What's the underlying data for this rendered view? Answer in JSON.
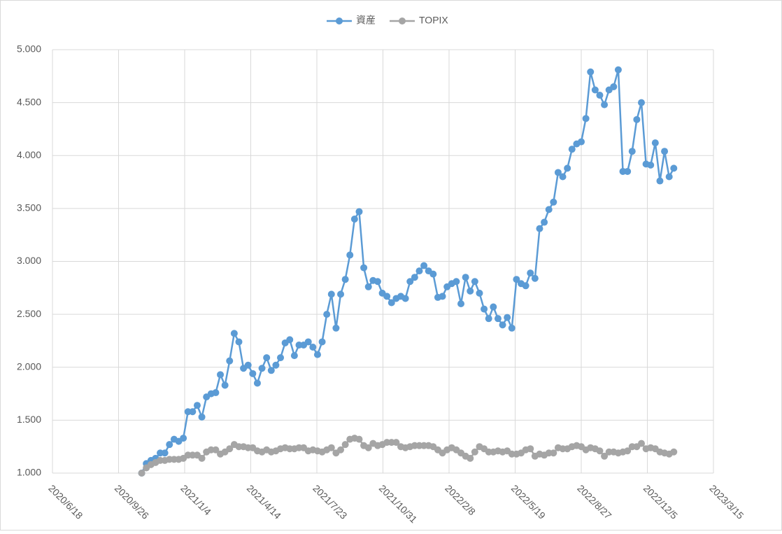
{
  "chart_data": {
    "type": "line",
    "x": [
      "2020/10/31",
      "2020/11/7",
      "2020/11/14",
      "2020/11/21",
      "2020/11/28",
      "2020/12/5",
      "2020/12/12",
      "2020/12/19",
      "2020/12/26",
      "2021/1/2",
      "2021/1/9",
      "2021/1/16",
      "2021/1/23",
      "2021/1/30",
      "2021/2/6",
      "2021/2/13",
      "2021/2/20",
      "2021/2/27",
      "2021/3/6",
      "2021/3/13",
      "2021/3/20",
      "2021/3/27",
      "2021/4/3",
      "2021/4/10",
      "2021/4/17",
      "2021/4/24",
      "2021/5/1",
      "2021/5/8",
      "2021/5/15",
      "2021/5/22",
      "2021/5/29",
      "2021/6/5",
      "2021/6/12",
      "2021/6/19",
      "2021/6/26",
      "2021/7/3",
      "2021/7/10",
      "2021/7/17",
      "2021/7/24",
      "2021/7/31",
      "2021/8/7",
      "2021/8/14",
      "2021/8/21",
      "2021/8/28",
      "2021/9/4",
      "2021/9/11",
      "2021/9/18",
      "2021/9/25",
      "2021/10/2",
      "2021/10/9",
      "2021/10/16",
      "2021/10/23",
      "2021/10/30",
      "2021/11/6",
      "2021/11/13",
      "2021/11/20",
      "2021/11/27",
      "2021/12/4",
      "2021/12/11",
      "2021/12/18",
      "2021/12/25",
      "2022/1/1",
      "2022/1/8",
      "2022/1/15",
      "2022/1/22",
      "2022/1/29",
      "2022/2/5",
      "2022/2/12",
      "2022/2/19",
      "2022/2/26",
      "2022/3/5",
      "2022/3/12",
      "2022/3/19",
      "2022/3/26",
      "2022/4/2",
      "2022/4/9",
      "2022/4/16",
      "2022/4/23",
      "2022/4/30",
      "2022/5/7",
      "2022/5/14",
      "2022/5/21",
      "2022/5/28",
      "2022/6/4",
      "2022/6/11",
      "2022/6/18",
      "2022/6/25",
      "2022/7/2",
      "2022/7/9",
      "2022/7/16",
      "2022/7/23",
      "2022/7/30",
      "2022/8/6",
      "2022/8/13",
      "2022/8/20",
      "2022/8/27",
      "2022/9/3",
      "2022/9/10",
      "2022/9/17",
      "2022/9/24",
      "2022/10/1",
      "2022/10/8",
      "2022/10/15",
      "2022/10/22",
      "2022/10/29",
      "2022/11/5",
      "2022/11/12",
      "2022/11/19",
      "2022/11/26",
      "2022/12/3",
      "2022/12/10",
      "2022/12/17",
      "2022/12/24",
      "2022/12/31",
      "2023/1/7",
      "2023/1/14"
    ],
    "series": [
      {
        "name": "資産",
        "color": "#5b9bd5",
        "values": [
          1.0,
          1.09,
          1.12,
          1.14,
          1.19,
          1.19,
          1.27,
          1.32,
          1.3,
          1.33,
          1.58,
          1.58,
          1.64,
          1.53,
          1.72,
          1.75,
          1.76,
          1.93,
          1.83,
          2.06,
          2.32,
          2.24,
          1.99,
          2.02,
          1.94,
          1.85,
          1.99,
          2.09,
          1.97,
          2.02,
          2.09,
          2.23,
          2.26,
          2.11,
          2.21,
          2.21,
          2.24,
          2.19,
          2.12,
          2.24,
          2.5,
          2.69,
          2.37,
          2.69,
          2.83,
          3.06,
          3.4,
          3.47,
          2.94,
          2.76,
          2.82,
          2.81,
          2.7,
          2.67,
          2.61,
          2.65,
          2.67,
          2.65,
          2.81,
          2.85,
          2.91,
          2.96,
          2.91,
          2.88,
          2.66,
          2.67,
          2.76,
          2.79,
          2.81,
          2.6,
          2.85,
          2.72,
          2.81,
          2.7,
          2.55,
          2.46,
          2.57,
          2.46,
          2.4,
          2.47,
          2.37,
          2.83,
          2.79,
          2.77,
          2.89,
          2.84,
          3.31,
          3.37,
          3.49,
          3.56,
          3.84,
          3.8,
          3.88,
          4.06,
          4.11,
          4.13,
          4.35,
          4.79,
          4.62,
          4.57,
          4.48,
          4.62,
          4.65,
          4.81,
          3.85,
          3.85,
          4.04,
          4.34,
          4.5,
          3.92,
          3.91,
          4.12,
          3.76,
          4.04,
          3.8,
          3.88
        ]
      },
      {
        "name": "TOPIX",
        "color": "#a5a5a5",
        "values": [
          1.0,
          1.05,
          1.08,
          1.1,
          1.12,
          1.12,
          1.13,
          1.13,
          1.13,
          1.14,
          1.17,
          1.17,
          1.17,
          1.14,
          1.2,
          1.22,
          1.22,
          1.18,
          1.2,
          1.23,
          1.27,
          1.25,
          1.25,
          1.24,
          1.24,
          1.21,
          1.2,
          1.22,
          1.2,
          1.21,
          1.23,
          1.24,
          1.23,
          1.23,
          1.24,
          1.24,
          1.21,
          1.22,
          1.21,
          1.2,
          1.22,
          1.24,
          1.19,
          1.22,
          1.27,
          1.32,
          1.33,
          1.32,
          1.26,
          1.24,
          1.28,
          1.26,
          1.27,
          1.29,
          1.29,
          1.29,
          1.25,
          1.24,
          1.25,
          1.26,
          1.26,
          1.26,
          1.26,
          1.25,
          1.22,
          1.19,
          1.22,
          1.24,
          1.22,
          1.19,
          1.16,
          1.14,
          1.2,
          1.25,
          1.23,
          1.2,
          1.2,
          1.21,
          1.2,
          1.21,
          1.18,
          1.18,
          1.19,
          1.22,
          1.23,
          1.16,
          1.18,
          1.17,
          1.19,
          1.19,
          1.24,
          1.23,
          1.23,
          1.25,
          1.26,
          1.25,
          1.22,
          1.24,
          1.23,
          1.21,
          1.16,
          1.2,
          1.2,
          1.19,
          1.2,
          1.21,
          1.25,
          1.25,
          1.28,
          1.23,
          1.24,
          1.23,
          1.2,
          1.19,
          1.18,
          1.2
        ]
      }
    ],
    "xlim": [
      "2020/6/18",
      "2023/3/15"
    ],
    "xticks": [
      "2020/6/18",
      "2020/9/26",
      "2021/1/4",
      "2021/4/14",
      "2021/7/23",
      "2021/10/31",
      "2022/2/8",
      "2022/5/19",
      "2022/8/27",
      "2022/12/5",
      "2023/3/15"
    ],
    "ylim": [
      1,
      5
    ],
    "yticks": [
      {
        "value": 1,
        "label": "1.000"
      },
      {
        "value": 1.5,
        "label": "1.500"
      },
      {
        "value": 2,
        "label": "2.000"
      },
      {
        "value": 2.5,
        "label": "2.500"
      },
      {
        "value": 3,
        "label": "3.000"
      },
      {
        "value": 3.5,
        "label": "3.500"
      },
      {
        "value": 4,
        "label": "4.000"
      },
      {
        "value": 4.5,
        "label": "4.500"
      },
      {
        "value": 5,
        "label": "5.000"
      }
    ],
    "grid": true,
    "legend": "top"
  }
}
